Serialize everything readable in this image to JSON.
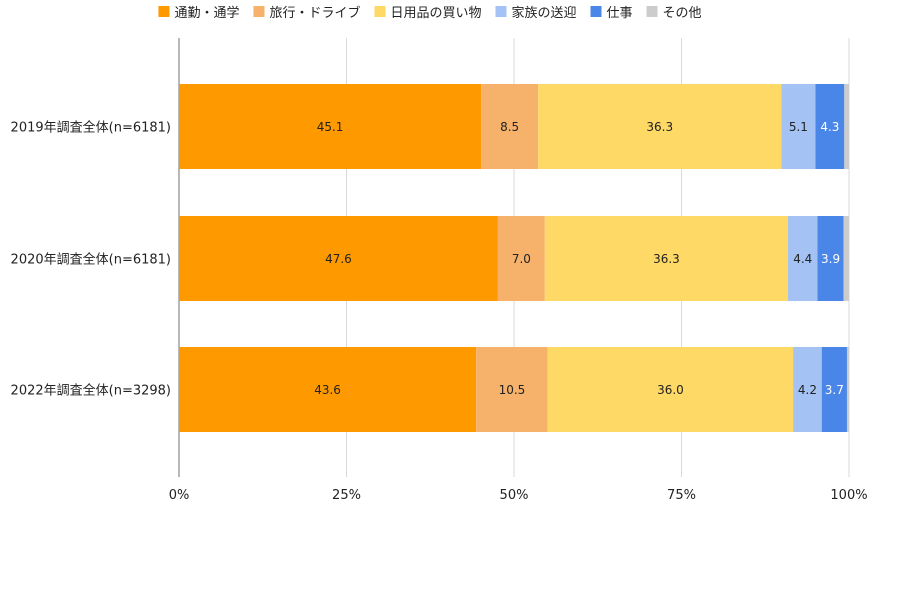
{
  "chart_data": {
    "type": "bar",
    "orientation": "horizontal",
    "stacked": true,
    "normalized": true,
    "categories": [
      "2019年調査全体(n=6181)",
      "2020年調査全体(n=6181)",
      "2022年調査全体(n=3298)"
    ],
    "series": [
      {
        "name": "通勤・通学",
        "color": "#ff9900",
        "values": [
          45.1,
          47.6,
          43.6
        ],
        "labels": [
          "45.1",
          "47.6",
          "43.6"
        ]
      },
      {
        "name": "旅行・ドライブ",
        "color": "#f6b26b",
        "values": [
          8.5,
          7.0,
          10.5
        ],
        "labels": [
          "8.5",
          "7.0",
          "10.5"
        ]
      },
      {
        "name": "日用品の買い物",
        "color": "#ffd966",
        "values": [
          36.3,
          36.3,
          36.0
        ],
        "labels": [
          "36.3",
          "36.3",
          "36.0"
        ]
      },
      {
        "name": "家族の送迎",
        "color": "#a4c2f4",
        "values": [
          5.1,
          4.4,
          4.2
        ],
        "labels": [
          "5.1",
          "4.4",
          "4.2"
        ]
      },
      {
        "name": "仕事",
        "color": "#4a86e8",
        "values": [
          4.3,
          3.9,
          3.7
        ],
        "labels": [
          "4.3",
          "3.9",
          "3.7"
        ]
      },
      {
        "name": "その他",
        "color": "#cccccc",
        "values": [
          0.7,
          0.8,
          0.3
        ],
        "labels": [
          "",
          "",
          ""
        ]
      }
    ],
    "x_ticks": [
      "0%",
      "25%",
      "50%",
      "75%",
      "100%"
    ],
    "xlim": [
      0,
      100
    ],
    "grid": true,
    "legend_position": "top"
  }
}
